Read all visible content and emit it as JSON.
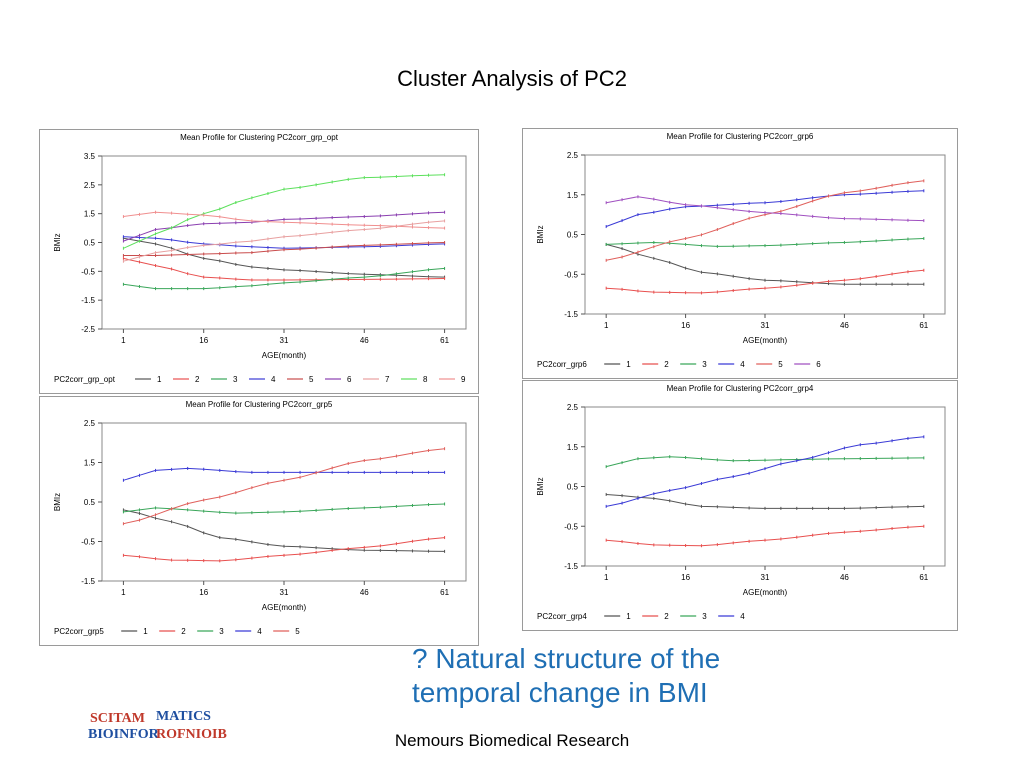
{
  "slide": {
    "title": "Cluster Analysis of PC2",
    "question_line1": "? Natural structure of the",
    "question_line2": "temporal change in BMI",
    "footer": "Nemours Biomedical Research",
    "logo_text_top": "MATICS",
    "logo_text_bottom": "BIOINFOR",
    "logo_text_mirror_top": "SCITAM",
    "logo_text_mirror_bottom": "ROFNIOIB"
  },
  "chart_data": [
    {
      "type": "line",
      "title": "Mean Profile for Clustering PC2corr_grp_opt",
      "xlabel": "AGE(month)",
      "ylabel": "BMIz",
      "x": [
        1,
        4,
        7,
        10,
        13,
        16,
        19,
        22,
        25,
        28,
        31,
        34,
        37,
        40,
        43,
        46,
        49,
        52,
        55,
        58,
        61
      ],
      "xticks": [
        1,
        16,
        31,
        46,
        61
      ],
      "xticklabels": [
        "1",
        "16",
        "31",
        "46",
        "61"
      ],
      "yticks": [
        -2.5,
        -1.5,
        -0.5,
        0.5,
        1.5,
        2.5,
        3.5
      ],
      "yticklabels": [
        "-2.5",
        "-1.5",
        "-0.5",
        "0.5",
        "1.5",
        "2.5",
        "3.5"
      ],
      "ylim": [
        -2.5,
        3.5
      ],
      "xlim": [
        -3,
        65
      ],
      "legend_title": "PC2corr_grp_opt",
      "legend_position": "bottom",
      "series": [
        {
          "name": "1",
          "color": "#555555",
          "anchors": [
            [
              1,
              0.65
            ],
            [
              7,
              0.45
            ],
            [
              16,
              -0.05
            ],
            [
              25,
              -0.35
            ],
            [
              31,
              -0.45
            ],
            [
              46,
              -0.6
            ],
            [
              61,
              -0.7
            ]
          ]
        },
        {
          "name": "2",
          "color": "#e8504f",
          "anchors": [
            [
              1,
              -0.05
            ],
            [
              7,
              -0.3
            ],
            [
              16,
              -0.7
            ],
            [
              25,
              -0.8
            ],
            [
              31,
              -0.8
            ],
            [
              46,
              -0.78
            ],
            [
              61,
              -0.75
            ]
          ]
        },
        {
          "name": "3",
          "color": "#3aa65a",
          "anchors": [
            [
              1,
              -0.95
            ],
            [
              7,
              -1.1
            ],
            [
              16,
              -1.1
            ],
            [
              25,
              -1.0
            ],
            [
              31,
              -0.9
            ],
            [
              46,
              -0.7
            ],
            [
              61,
              -0.4
            ]
          ]
        },
        {
          "name": "4",
          "color": "#3b3bd6",
          "anchors": [
            [
              1,
              0.7
            ],
            [
              7,
              0.65
            ],
            [
              16,
              0.45
            ],
            [
              25,
              0.35
            ],
            [
              31,
              0.3
            ],
            [
              46,
              0.35
            ],
            [
              61,
              0.45
            ]
          ]
        },
        {
          "name": "5",
          "color": "#c94c4c",
          "anchors": [
            [
              1,
              0.05
            ],
            [
              7,
              0.05
            ],
            [
              16,
              0.1
            ],
            [
              25,
              0.15
            ],
            [
              31,
              0.25
            ],
            [
              46,
              0.4
            ],
            [
              61,
              0.5
            ]
          ]
        },
        {
          "name": "6",
          "color": "#8a3fb0",
          "anchors": [
            [
              1,
              0.55
            ],
            [
              7,
              0.95
            ],
            [
              16,
              1.15
            ],
            [
              25,
              1.2
            ],
            [
              31,
              1.3
            ],
            [
              46,
              1.4
            ],
            [
              61,
              1.55
            ]
          ]
        },
        {
          "name": "7",
          "color": "#e8a0a0",
          "anchors": [
            [
              1,
              -0.15
            ],
            [
              7,
              0.15
            ],
            [
              16,
              0.4
            ],
            [
              25,
              0.55
            ],
            [
              31,
              0.7
            ],
            [
              46,
              0.95
            ],
            [
              61,
              1.25
            ]
          ]
        },
        {
          "name": "8",
          "color": "#5ce05c",
          "anchors": [
            [
              1,
              0.3
            ],
            [
              7,
              0.8
            ],
            [
              16,
              1.5
            ],
            [
              25,
              2.05
            ],
            [
              31,
              2.35
            ],
            [
              46,
              2.75
            ],
            [
              61,
              2.85
            ]
          ]
        },
        {
          "name": "9",
          "color": "#f08f8f",
          "anchors": [
            [
              1,
              1.4
            ],
            [
              7,
              1.55
            ],
            [
              16,
              1.45
            ],
            [
              25,
              1.25
            ],
            [
              31,
              1.2
            ],
            [
              46,
              1.1
            ],
            [
              61,
              1.0
            ]
          ]
        }
      ]
    },
    {
      "type": "line",
      "title": "Mean Profile for Clustering PC2corr_grp6",
      "xlabel": "AGE(month)",
      "ylabel": "BMIz",
      "x": [
        1,
        4,
        7,
        10,
        13,
        16,
        19,
        22,
        25,
        28,
        31,
        34,
        37,
        40,
        43,
        46,
        49,
        52,
        55,
        58,
        61
      ],
      "xticks": [
        1,
        16,
        31,
        46,
        61
      ],
      "xticklabels": [
        "1",
        "16",
        "31",
        "46",
        "61"
      ],
      "yticks": [
        -1.5,
        -0.5,
        0.5,
        1.5,
        2.5
      ],
      "yticklabels": [
        "-1.5",
        "-0.5",
        "0.5",
        "1.5",
        "2.5"
      ],
      "ylim": [
        -1.5,
        2.5
      ],
      "xlim": [
        -3,
        65
      ],
      "legend_title": "PC2corr_grp6",
      "legend_position": "bottom",
      "series": [
        {
          "name": "1",
          "color": "#555555",
          "anchors": [
            [
              1,
              0.25
            ],
            [
              10,
              -0.1
            ],
            [
              19,
              -0.45
            ],
            [
              31,
              -0.65
            ],
            [
              46,
              -0.75
            ],
            [
              61,
              -0.75
            ]
          ]
        },
        {
          "name": "2",
          "color": "#e8504f",
          "anchors": [
            [
              1,
              -0.85
            ],
            [
              10,
              -0.95
            ],
            [
              19,
              -0.97
            ],
            [
              31,
              -0.85
            ],
            [
              46,
              -0.65
            ],
            [
              61,
              -0.4
            ]
          ]
        },
        {
          "name": "3",
          "color": "#3aa65a",
          "anchors": [
            [
              1,
              0.25
            ],
            [
              10,
              0.3
            ],
            [
              22,
              0.2
            ],
            [
              31,
              0.22
            ],
            [
              46,
              0.3
            ],
            [
              61,
              0.4
            ]
          ]
        },
        {
          "name": "4",
          "color": "#3b3bd6",
          "anchors": [
            [
              1,
              0.7
            ],
            [
              7,
              1.0
            ],
            [
              16,
              1.2
            ],
            [
              31,
              1.3
            ],
            [
              46,
              1.5
            ],
            [
              61,
              1.6
            ]
          ]
        },
        {
          "name": "5",
          "color": "#e0605c",
          "anchors": [
            [
              1,
              -0.15
            ],
            [
              16,
              0.4
            ],
            [
              31,
              1.0
            ],
            [
              46,
              1.55
            ],
            [
              61,
              1.85
            ]
          ]
        },
        {
          "name": "6",
          "color": "#a050c0",
          "anchors": [
            [
              1,
              1.3
            ],
            [
              7,
              1.45
            ],
            [
              16,
              1.25
            ],
            [
              31,
              1.05
            ],
            [
              46,
              0.9
            ],
            [
              61,
              0.85
            ]
          ]
        }
      ]
    },
    {
      "type": "line",
      "title": "Mean Profile for Clustering PC2corr_grp5",
      "xlabel": "AGE(month)",
      "ylabel": "BMIz",
      "x": [
        1,
        4,
        7,
        10,
        13,
        16,
        19,
        22,
        25,
        28,
        31,
        34,
        37,
        40,
        43,
        46,
        49,
        52,
        55,
        58,
        61
      ],
      "xticks": [
        1,
        16,
        31,
        46,
        61
      ],
      "xticklabels": [
        "1",
        "16",
        "31",
        "46",
        "61"
      ],
      "yticks": [
        -1.5,
        -0.5,
        0.5,
        1.5,
        2.5
      ],
      "yticklabels": [
        "-1.5",
        "-0.5",
        "0.5",
        "1.5",
        "2.5"
      ],
      "ylim": [
        -1.5,
        2.5
      ],
      "xlim": [
        -3,
        65
      ],
      "legend_title": "PC2corr_grp5",
      "legend_position": "bottom",
      "series": [
        {
          "name": "1",
          "color": "#555555",
          "anchors": [
            [
              1,
              0.3
            ],
            [
              10,
              0.0
            ],
            [
              19,
              -0.4
            ],
            [
              31,
              -0.62
            ],
            [
              46,
              -0.72
            ],
            [
              61,
              -0.75
            ]
          ]
        },
        {
          "name": "2",
          "color": "#e8504f",
          "anchors": [
            [
              1,
              -0.85
            ],
            [
              10,
              -0.97
            ],
            [
              19,
              -0.99
            ],
            [
              31,
              -0.85
            ],
            [
              46,
              -0.65
            ],
            [
              61,
              -0.4
            ]
          ]
        },
        {
          "name": "3",
          "color": "#3aa65a",
          "anchors": [
            [
              1,
              0.25
            ],
            [
              7,
              0.35
            ],
            [
              22,
              0.22
            ],
            [
              31,
              0.25
            ],
            [
              46,
              0.35
            ],
            [
              61,
              0.45
            ]
          ]
        },
        {
          "name": "4",
          "color": "#3b3bd6",
          "anchors": [
            [
              1,
              1.05
            ],
            [
              7,
              1.3
            ],
            [
              13,
              1.35
            ],
            [
              25,
              1.25
            ],
            [
              46,
              1.25
            ],
            [
              61,
              1.25
            ]
          ]
        },
        {
          "name": "5",
          "color": "#e0605c",
          "anchors": [
            [
              1,
              -0.05
            ],
            [
              16,
              0.55
            ],
            [
              31,
              1.05
            ],
            [
              46,
              1.55
            ],
            [
              61,
              1.85
            ]
          ]
        }
      ]
    },
    {
      "type": "line",
      "title": "Mean Profile for Clustering PC2corr_grp4",
      "xlabel": "AGE(month)",
      "ylabel": "BMIz",
      "x": [
        1,
        4,
        7,
        10,
        13,
        16,
        19,
        22,
        25,
        28,
        31,
        34,
        37,
        40,
        43,
        46,
        49,
        52,
        55,
        58,
        61
      ],
      "xticks": [
        1,
        16,
        31,
        46,
        61
      ],
      "xticklabels": [
        "1",
        "16",
        "31",
        "46",
        "61"
      ],
      "yticks": [
        -1.5,
        -0.5,
        0.5,
        1.5,
        2.5
      ],
      "yticklabels": [
        "-1.5",
        "-0.5",
        "0.5",
        "1.5",
        "2.5"
      ],
      "ylim": [
        -1.5,
        2.5
      ],
      "xlim": [
        -3,
        65
      ],
      "legend_title": "PC2corr_grp4",
      "legend_position": "bottom",
      "series": [
        {
          "name": "1",
          "color": "#555555",
          "anchors": [
            [
              1,
              0.3
            ],
            [
              10,
              0.2
            ],
            [
              19,
              0.0
            ],
            [
              31,
              -0.05
            ],
            [
              46,
              -0.05
            ],
            [
              61,
              0.0
            ]
          ]
        },
        {
          "name": "2",
          "color": "#e8504f",
          "anchors": [
            [
              1,
              -0.85
            ],
            [
              10,
              -0.97
            ],
            [
              19,
              -0.99
            ],
            [
              31,
              -0.85
            ],
            [
              46,
              -0.65
            ],
            [
              61,
              -0.5
            ]
          ]
        },
        {
          "name": "3",
          "color": "#3aa65a",
          "anchors": [
            [
              1,
              1.0
            ],
            [
              7,
              1.2
            ],
            [
              13,
              1.25
            ],
            [
              25,
              1.15
            ],
            [
              46,
              1.2
            ],
            [
              61,
              1.22
            ]
          ]
        },
        {
          "name": "4",
          "color": "#3b3bd6",
          "anchors": [
            [
              1,
              0.0
            ],
            [
              13,
              0.4
            ],
            [
              25,
              0.75
            ],
            [
              37,
              1.15
            ],
            [
              49,
              1.55
            ],
            [
              61,
              1.75
            ]
          ]
        }
      ]
    }
  ]
}
